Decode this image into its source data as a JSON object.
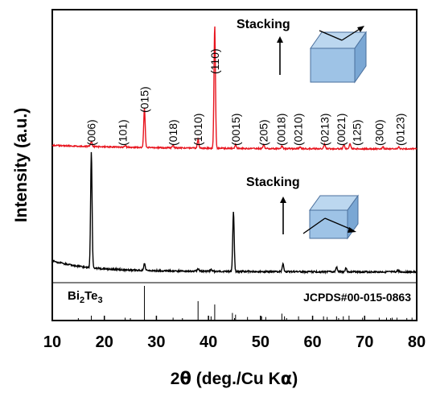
{
  "colors": {
    "top_series": "#e8141e",
    "bottom_series": "#000000",
    "cube_face": "#9ec3e6",
    "cube_top": "#bcd7ef",
    "cube_side": "#7aa7d4",
    "cube_edge": "#4a6f9c",
    "stacking_text": "#1f1fd0"
  },
  "labels": {
    "xlabel_pre": "2",
    "xlabel_theta": "θ",
    "xlabel_mid": " (deg./Cu K",
    "xlabel_alpha": "α",
    "xlabel_end": ")",
    "ylabel": "Intensity (a.u.)",
    "stacking_top": "Stacking",
    "stacking_bottom": "Stacking",
    "bi2te3_bi": "Bi",
    "bi2te3_sub1": "2",
    "bi2te3_te": "Te",
    "bi2te3_sub2": "3",
    "jcpds": "JCPDS#00-015-0863"
  },
  "chart_data": {
    "type": "line",
    "xlabel": "2θ (deg./Cu Kα)",
    "ylabel": "Intensity (a.u.)",
    "xlim": [
      10,
      80
    ],
    "x_ticks": [
      10,
      20,
      30,
      40,
      50,
      60,
      70,
      80
    ],
    "legend": "none",
    "series": [
      {
        "color": "#e8141e",
        "baseline": 0.9,
        "peaks": [
          {
            "x": 17.5,
            "h": 0.04
          },
          {
            "x": 24.0,
            "h": 0.015
          },
          {
            "x": 27.7,
            "h": 0.32
          },
          {
            "x": 33.2,
            "h": 0.02
          },
          {
            "x": 38.0,
            "h": 0.07
          },
          {
            "x": 41.2,
            "h": 1.0
          },
          {
            "x": 45.2,
            "h": 0.03
          },
          {
            "x": 50.6,
            "h": 0.03
          },
          {
            "x": 54.1,
            "h": 0.02
          },
          {
            "x": 57.6,
            "h": 0.015
          },
          {
            "x": 62.3,
            "h": 0.035
          },
          {
            "x": 66.0,
            "h": 0.035
          },
          {
            "x": 67.2,
            "h": 0.04
          },
          {
            "x": 73.5,
            "h": 0.015
          },
          {
            "x": 76.5,
            "h": 0.015
          }
        ],
        "labels": [
          {
            "x": 17.5,
            "text": "(006)"
          },
          {
            "x": 23.5,
            "text": "(101)"
          },
          {
            "x": 27.7,
            "text": "(015)"
          },
          {
            "x": 33.2,
            "text": "(018)"
          },
          {
            "x": 38.0,
            "text": "(1010)"
          },
          {
            "x": 41.2,
            "text": "(110)"
          },
          {
            "x": 45.2,
            "text": "(0015)"
          },
          {
            "x": 50.6,
            "text": "(205)"
          },
          {
            "x": 54.0,
            "text": "(0018)"
          },
          {
            "x": 57.2,
            "text": "(0210)"
          },
          {
            "x": 62.3,
            "text": "(0213)"
          },
          {
            "x": 65.5,
            "text": "(0021)"
          },
          {
            "x": 68.5,
            "text": "(125)"
          },
          {
            "x": 72.8,
            "text": "(300)"
          },
          {
            "x": 76.8,
            "text": "(0123)"
          }
        ]
      },
      {
        "color": "#000000",
        "baseline": 0.0,
        "peaks": [
          {
            "x": 17.5,
            "h": 1.0
          },
          {
            "x": 27.7,
            "h": 0.06
          },
          {
            "x": 38.0,
            "h": 0.02
          },
          {
            "x": 40.5,
            "h": 0.015
          },
          {
            "x": 44.8,
            "h": 0.52
          },
          {
            "x": 54.3,
            "h": 0.07
          },
          {
            "x": 64.6,
            "h": 0.04
          },
          {
            "x": 66.4,
            "h": 0.035
          },
          {
            "x": 76.4,
            "h": 0.015
          }
        ]
      }
    ],
    "reference_sticks": [
      {
        "x": 17.5,
        "h": 0.12
      },
      {
        "x": 24.0,
        "h": 0.06
      },
      {
        "x": 27.7,
        "h": 1.0
      },
      {
        "x": 33.2,
        "h": 0.06
      },
      {
        "x": 38.0,
        "h": 0.55
      },
      {
        "x": 40.5,
        "h": 0.1
      },
      {
        "x": 41.2,
        "h": 0.45
      },
      {
        "x": 44.6,
        "h": 0.2
      },
      {
        "x": 45.2,
        "h": 0.15
      },
      {
        "x": 47.5,
        "h": 0.08
      },
      {
        "x": 50.2,
        "h": 0.1
      },
      {
        "x": 51.0,
        "h": 0.08
      },
      {
        "x": 54.1,
        "h": 0.18
      },
      {
        "x": 54.6,
        "h": 0.1
      },
      {
        "x": 57.3,
        "h": 0.1
      },
      {
        "x": 62.1,
        "h": 0.1
      },
      {
        "x": 62.8,
        "h": 0.08
      },
      {
        "x": 64.6,
        "h": 0.1
      },
      {
        "x": 65.9,
        "h": 0.1
      },
      {
        "x": 67.0,
        "h": 0.12
      },
      {
        "x": 69.6,
        "h": 0.06
      },
      {
        "x": 72.8,
        "h": 0.06
      },
      {
        "x": 74.2,
        "h": 0.06
      },
      {
        "x": 75.3,
        "h": 0.06
      },
      {
        "x": 76.2,
        "h": 0.06
      },
      {
        "x": 78.1,
        "h": 0.05
      },
      {
        "x": 79.1,
        "h": 0.06
      }
    ]
  }
}
